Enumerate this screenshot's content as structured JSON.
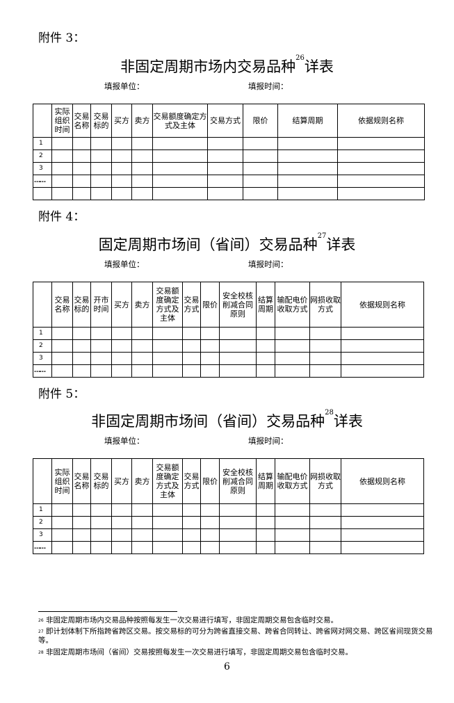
{
  "fill_labels": {
    "unit": "填报单位：",
    "time": "填报时间："
  },
  "annex3": {
    "label": "附件 3：",
    "title": "非固定周期市场内交易品种",
    "footnote_ref": "26",
    "title_suffix": "详表",
    "headers": [
      "",
      "实际组织时间",
      "交易名称",
      "交易标的",
      "买方",
      "卖方",
      "交易额度确定方式及主体",
      "交易方式",
      "限价",
      "结算周期",
      "依据规则名称"
    ],
    "rows": [
      "1",
      "2",
      "3",
      "……",
      ""
    ]
  },
  "annex4": {
    "label": "附件 4：",
    "title": "固定周期市场间（省间）交易品种",
    "footnote_ref": "27",
    "title_suffix": "详表",
    "headers": [
      "",
      "交易名称",
      "交易标的",
      "开市时间",
      "买方",
      "卖方",
      "交易额度确定方式及主体",
      "交易方式",
      "限价",
      "安全校核削减合同原则",
      "结算周期",
      "输配电价收取方式",
      "网损收取方式",
      "依据规则名称"
    ],
    "rows": [
      "1",
      "2",
      "3",
      "……"
    ]
  },
  "annex5": {
    "label": "附件 5：",
    "title": "非固定周期市场间（省间）交易品种",
    "footnote_ref": "28",
    "title_suffix": "详表",
    "headers": [
      "",
      "实际组织时间",
      "交易名称",
      "交易标的",
      "买方",
      "卖方",
      "交易额度确定方式及主体",
      "交易方式",
      "限价",
      "安全校核削减合同原则",
      "结算周期",
      "输配电价收取方式",
      "网损收取方式",
      "依据规则名称"
    ],
    "rows": [
      "1",
      "2",
      "3",
      "……"
    ]
  },
  "footnotes": [
    {
      "num": "26",
      "text": "非固定周期市场内交易品种按照每发生一次交易进行填写，非固定周期交易包含临时交易。"
    },
    {
      "num": "27",
      "text": "即计划体制下所指跨省跨区交易。按交易标的可分为跨省直接交易、跨省合同转让、跨省网对网交易、跨区省间现货交易等。"
    },
    {
      "num": "28",
      "text": "非固定周期市场间（省间）交易按照每发生一次交易进行填写，非固定周期交易包含临时交易。"
    }
  ],
  "page_number": "6"
}
